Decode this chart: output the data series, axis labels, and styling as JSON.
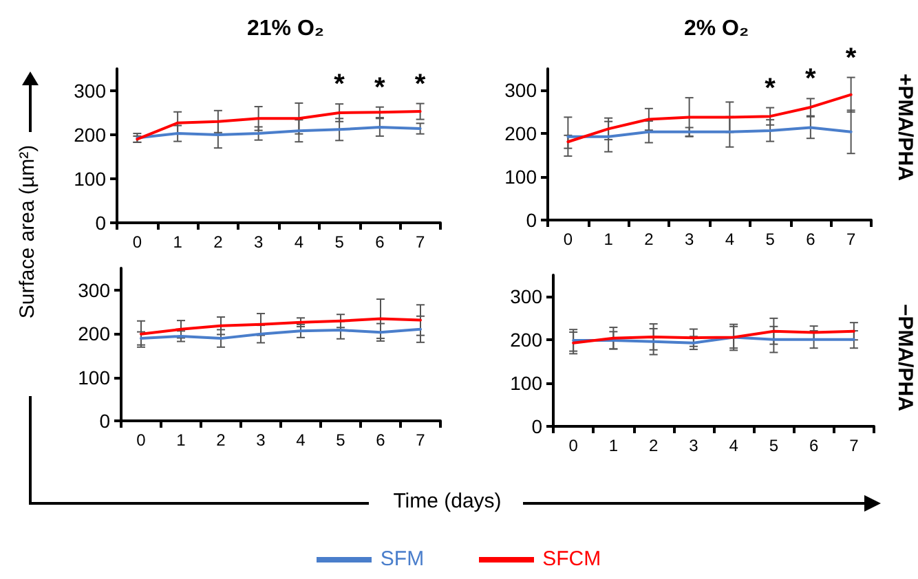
{
  "chart_data": [
    {
      "type": "line",
      "title": "21% O₂",
      "ylabel": "Surface area (µm²)",
      "categories": [
        "0",
        "1",
        "2",
        "3",
        "4",
        "5",
        "6",
        "7"
      ],
      "ylim": [
        0,
        350
      ],
      "yticks": [
        0,
        100,
        200,
        300
      ],
      "grid": false,
      "legend": "bottom",
      "marker": "none",
      "line_style": "solid",
      "series": [
        {
          "name": "SFM",
          "color": "#4a7ecb",
          "values": [
            193,
            203,
            200,
            203,
            209,
            212,
            217,
            214
          ],
          "errors": [
            10,
            18,
            30,
            15,
            25,
            25,
            20,
            12
          ]
        },
        {
          "name": "SFCM",
          "color": "#ff0000",
          "values": [
            190,
            227,
            230,
            237,
            237,
            250,
            251,
            253
          ],
          "errors": [
            7,
            25,
            25,
            27,
            35,
            20,
            12,
            18
          ]
        }
      ],
      "annotations": [
        "*",
        "*",
        "*"
      ]
    },
    {
      "type": "line",
      "title": "2% O₂",
      "y2label": "+PMA/PHA",
      "categories": [
        "0",
        "1",
        "2",
        "3",
        "4",
        "5",
        "6",
        "7"
      ],
      "ylim": [
        0,
        350
      ],
      "yticks": [
        0,
        100,
        200,
        300
      ],
      "grid": false,
      "marker": "none",
      "line_style": "solid",
      "series": [
        {
          "color": "#4a7ecb",
          "values": [
            193,
            193,
            204,
            204,
            204,
            207,
            214,
            204
          ],
          "errors": [
            45,
            35,
            25,
            10,
            35,
            25,
            25,
            50
          ]
        },
        {
          "color": "#ff0000",
          "values": [
            181,
            211,
            233,
            238,
            238,
            240,
            261,
            290
          ],
          "errors": [
            15,
            25,
            25,
            45,
            35,
            20,
            20,
            40
          ]
        }
      ],
      "annotations": [
        "*",
        "*",
        "*"
      ]
    },
    {
      "type": "line",
      "xlabel": "Time (days)",
      "categories": [
        "0",
        "1",
        "2",
        "3",
        "4",
        "5",
        "6",
        "7"
      ],
      "ylim": [
        0,
        350
      ],
      "yticks": [
        0,
        100,
        200,
        300
      ],
      "grid": false,
      "marker": "none",
      "line_style": "solid",
      "series": [
        {
          "color": "#4a7ecb",
          "values": [
            189,
            194,
            189,
            199,
            206,
            208,
            203,
            210
          ],
          "errors": [
            15,
            12,
            20,
            20,
            15,
            20,
            20,
            30
          ]
        },
        {
          "color": "#ff0000",
          "values": [
            199,
            210,
            218,
            221,
            226,
            229,
            234,
            231
          ],
          "errors": [
            30,
            20,
            20,
            25,
            10,
            15,
            45,
            35
          ]
        }
      ]
    },
    {
      "type": "line",
      "y2label": "−PMA/PHA",
      "categories": [
        "0",
        "1",
        "2",
        "3",
        "4",
        "5",
        "6",
        "7"
      ],
      "ylim": [
        0,
        350
      ],
      "yticks": [
        0,
        100,
        200,
        300
      ],
      "grid": false,
      "marker": "none",
      "line_style": "solid",
      "series": [
        {
          "color": "#4a7ecb",
          "values": [
            199,
            199,
            196,
            193,
            206,
            201,
            201,
            201
          ],
          "errors": [
            25,
            20,
            30,
            15,
            25,
            30,
            20,
            20
          ]
        },
        {
          "color": "#ff0000",
          "values": [
            193,
            204,
            207,
            205,
            206,
            220,
            217,
            220
          ],
          "errors": [
            25,
            25,
            30,
            20,
            30,
            30,
            15,
            20
          ]
        }
      ]
    }
  ]
}
